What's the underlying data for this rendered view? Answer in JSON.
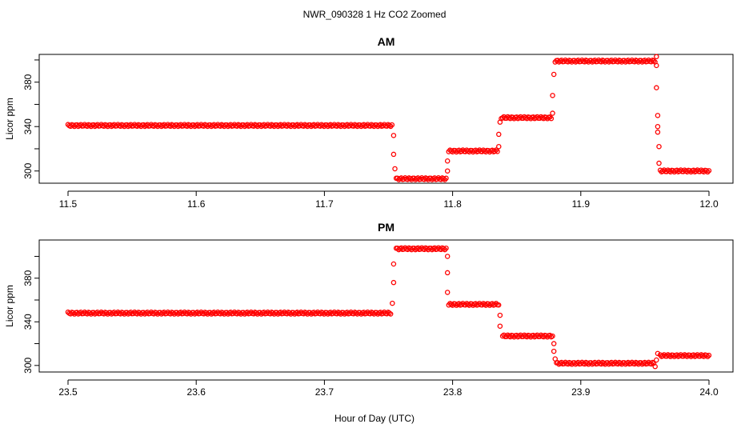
{
  "figure": {
    "title": "NWR_090328  1 Hz CO2 Zoomed",
    "xlabel": "Hour of Day (UTC)"
  },
  "chart_data": [
    {
      "type": "scatter",
      "title": "AM",
      "xlabel": "Hour of Day (UTC)",
      "ylabel": "Licor ppm",
      "xlim": [
        11.5,
        12.0
      ],
      "ylim": [
        289,
        405
      ],
      "xticks": [
        11.5,
        11.6,
        11.7,
        11.8,
        11.9,
        12.0
      ],
      "xtick_labels": [
        "11.5",
        "11.6",
        "11.7",
        "11.8",
        "11.9",
        "12.0"
      ],
      "yticks": [
        300,
        320,
        340,
        360,
        380,
        400
      ],
      "ytick_labels": [
        "300",
        "",
        "340",
        "",
        "380",
        ""
      ],
      "marker_color": "#ff0000",
      "segments": [
        {
          "x0": 11.5,
          "x1": 11.753,
          "y": 341
        },
        {
          "x0": 11.756,
          "x1": 11.795,
          "y": 293
        },
        {
          "x0": 11.797,
          "x1": 11.835,
          "y": 318
        },
        {
          "x0": 11.838,
          "x1": 11.877,
          "y": 348
        },
        {
          "x0": 11.88,
          "x1": 11.958,
          "y": 399
        },
        {
          "x0": 11.962,
          "x1": 12.0,
          "y": 300
        }
      ],
      "transitions": [
        {
          "x": 11.754,
          "y": 332
        },
        {
          "x": 11.754,
          "y": 315
        },
        {
          "x": 11.755,
          "y": 302
        },
        {
          "x": 11.796,
          "y": 300
        },
        {
          "x": 11.796,
          "y": 309
        },
        {
          "x": 11.836,
          "y": 322
        },
        {
          "x": 11.836,
          "y": 333
        },
        {
          "x": 11.837,
          "y": 344
        },
        {
          "x": 11.878,
          "y": 352
        },
        {
          "x": 11.878,
          "y": 368
        },
        {
          "x": 11.879,
          "y": 387
        },
        {
          "x": 11.959,
          "y": 403
        },
        {
          "x": 11.959,
          "y": 395
        },
        {
          "x": 11.959,
          "y": 375
        },
        {
          "x": 11.96,
          "y": 350
        },
        {
          "x": 11.96,
          "y": 340
        },
        {
          "x": 11.96,
          "y": 335
        },
        {
          "x": 11.961,
          "y": 322
        },
        {
          "x": 11.961,
          "y": 307
        }
      ]
    },
    {
      "type": "scatter",
      "title": "PM",
      "xlabel": "Hour of Day (UTC)",
      "ylabel": "Licor ppm",
      "xlim": [
        23.5,
        24.0
      ],
      "ylim": [
        294,
        415
      ],
      "xticks": [
        23.5,
        23.6,
        23.7,
        23.8,
        23.9,
        24.0
      ],
      "xtick_labels": [
        "23.5",
        "23.6",
        "23.7",
        "23.8",
        "23.9",
        "24.0"
      ],
      "yticks": [
        300,
        320,
        340,
        360,
        380,
        400
      ],
      "ytick_labels": [
        "300",
        "",
        "340",
        "",
        "380",
        ""
      ],
      "marker_color": "#ff0000",
      "segments": [
        {
          "x0": 23.5,
          "x1": 23.752,
          "y": 348
        },
        {
          "x0": 23.756,
          "x1": 23.795,
          "y": 407
        },
        {
          "x0": 23.797,
          "x1": 23.836,
          "y": 356
        },
        {
          "x0": 23.839,
          "x1": 23.878,
          "y": 327
        },
        {
          "x0": 23.881,
          "x1": 23.957,
          "y": 302
        },
        {
          "x0": 23.962,
          "x1": 24.0,
          "y": 309
        }
      ],
      "transitions": [
        {
          "x": 23.753,
          "y": 357
        },
        {
          "x": 23.754,
          "y": 376
        },
        {
          "x": 23.754,
          "y": 393
        },
        {
          "x": 23.796,
          "y": 400
        },
        {
          "x": 23.796,
          "y": 385
        },
        {
          "x": 23.796,
          "y": 367
        },
        {
          "x": 23.837,
          "y": 346
        },
        {
          "x": 23.837,
          "y": 336
        },
        {
          "x": 23.879,
          "y": 320
        },
        {
          "x": 23.879,
          "y": 313
        },
        {
          "x": 23.88,
          "y": 306
        },
        {
          "x": 23.958,
          "y": 299
        },
        {
          "x": 23.959,
          "y": 305
        },
        {
          "x": 23.96,
          "y": 311
        }
      ]
    }
  ]
}
